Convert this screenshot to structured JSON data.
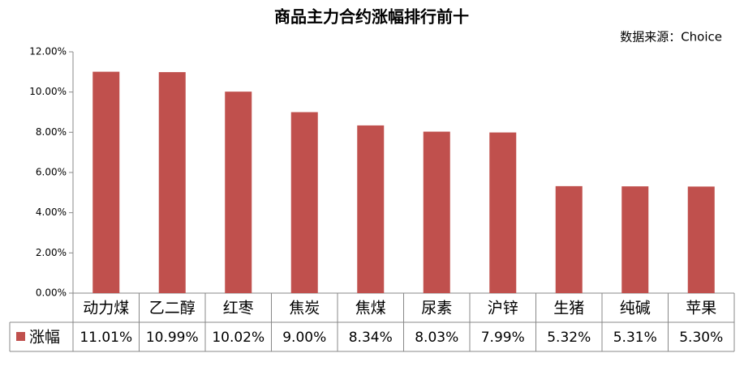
{
  "chart_data": {
    "type": "bar",
    "title": "商品主力合约涨幅排行前十",
    "source": "数据来源：Choice",
    "categories": [
      "动力煤",
      "乙二醇",
      "红枣",
      "焦炭",
      "焦煤",
      "尿素",
      "沪锌",
      "生猪",
      "纯碱",
      "苹果"
    ],
    "series": [
      {
        "name": "涨幅",
        "color": "#c0504d",
        "values": [
          11.01,
          10.99,
          10.02,
          9.0,
          8.34,
          8.03,
          7.99,
          5.32,
          5.31,
          5.3
        ],
        "value_labels": [
          "11.01%",
          "10.99%",
          "10.02%",
          "9.00%",
          "8.34%",
          "8.03%",
          "7.99%",
          "5.32%",
          "5.31%",
          "5.30%"
        ]
      }
    ],
    "ylim": [
      0,
      12
    ],
    "yticks": [
      {
        "value": 0,
        "label": "0.00%"
      },
      {
        "value": 2,
        "label": "2.00%"
      },
      {
        "value": 4,
        "label": "4.00%"
      },
      {
        "value": 6,
        "label": "6.00%"
      },
      {
        "value": 8,
        "label": "8.00%"
      },
      {
        "value": 10,
        "label": "10.00%"
      },
      {
        "value": 12,
        "label": "12.00%"
      }
    ],
    "grid": false
  }
}
